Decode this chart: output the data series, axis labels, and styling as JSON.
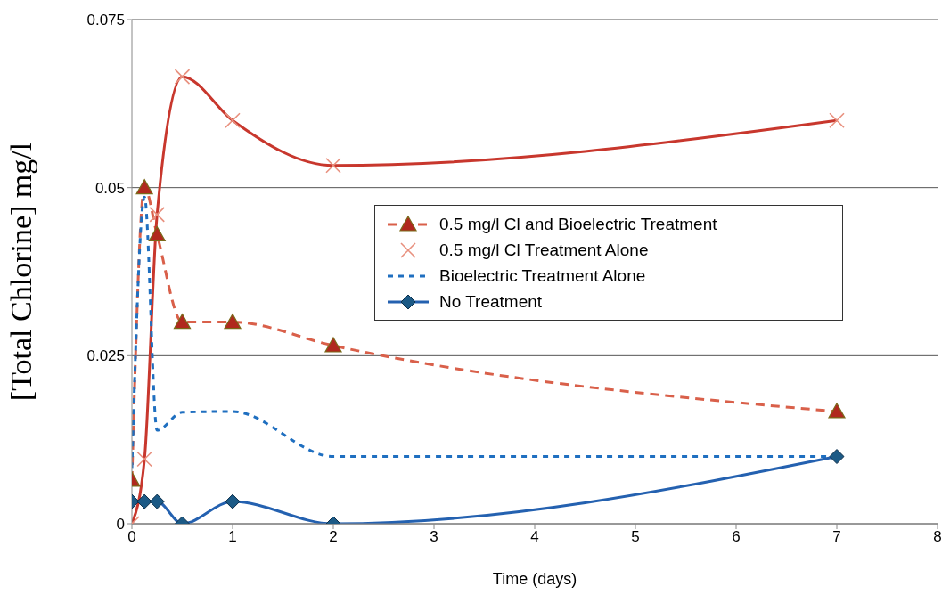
{
  "chart_data": {
    "type": "line",
    "xlabel": "Time (days)",
    "ylabel": "[Total Chlorine] mg/l",
    "x": [
      0,
      0.125,
      0.25,
      0.5,
      1,
      2,
      7
    ],
    "xlim": [
      0,
      8
    ],
    "xticks": [
      0,
      1,
      2,
      3,
      4,
      5,
      6,
      7,
      8
    ],
    "ylim": [
      0,
      0.075
    ],
    "yticks": [
      0,
      0.025,
      0.05,
      0.075
    ],
    "grid": "y",
    "legend": "right",
    "series": [
      {
        "name": "0.5 mg/l Cl and Bioelectric Treatment",
        "color": "#d9604a",
        "marker": "triangle",
        "line_style": "dashed",
        "values": [
          0.0065,
          0.05,
          0.043,
          0.03,
          0.03,
          0.0265,
          0.0167
        ]
      },
      {
        "name": "0.5 mg/l Cl Treatment Alone",
        "color": "#c8372d",
        "marker": "cross",
        "line_style": "solid",
        "values": [
          0,
          0.0096,
          0.046,
          0.0665,
          0.06,
          0.0533,
          0.06
        ]
      },
      {
        "name": "Bioelectric Treatment Alone",
        "color": "#1f6fc0",
        "marker": "none",
        "line_style": "dotted",
        "values": [
          0.0083,
          0.0486,
          0.0139,
          0.0166,
          0.0167,
          0.01,
          0.01
        ]
      },
      {
        "name": "No Treatment",
        "color": "#2461b0",
        "marker": "diamond",
        "line_style": "solid",
        "values": [
          0.0033,
          0.0033,
          0.0033,
          0,
          0.0033,
          0,
          0.01
        ]
      }
    ]
  }
}
